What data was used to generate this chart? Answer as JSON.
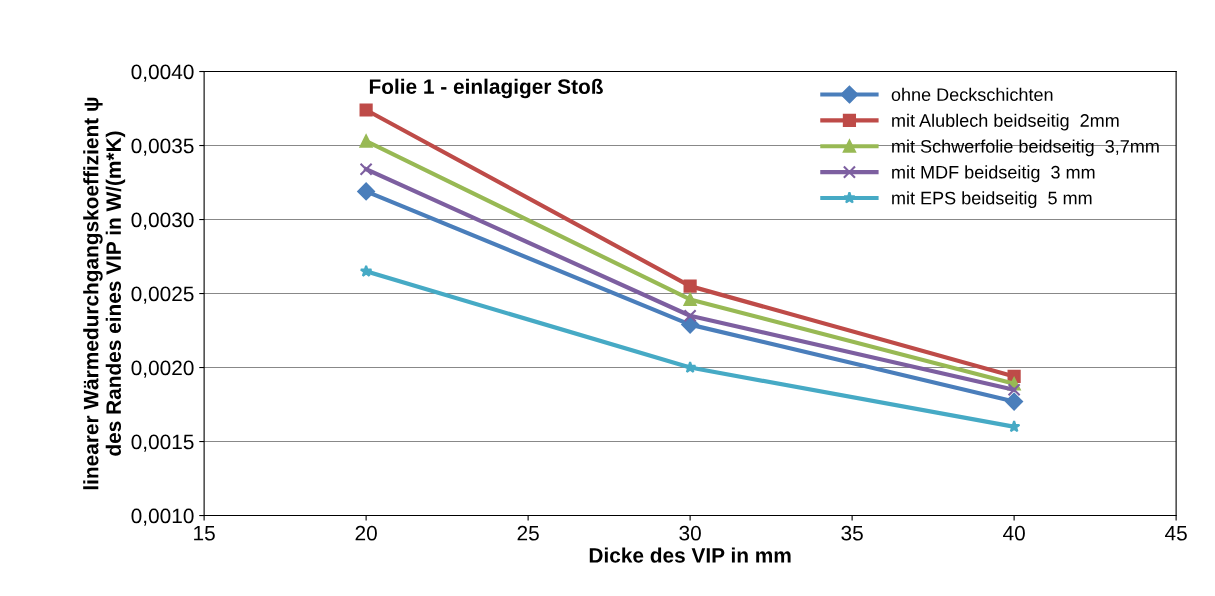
{
  "chart_data": {
    "type": "line",
    "title": "Folie 1 - einlagiger Stoß",
    "xlabel": "Dicke des VIP in mm",
    "ylabel": "linearer Wärmedurchgangskoeffizient ψ\ndes Randes eines VIP in W/(m*K)",
    "x": [
      20,
      30,
      40
    ],
    "series": [
      {
        "name": "ohne Deckschichten",
        "color": "#4a7ebb",
        "marker": "diamond",
        "values": [
          0.00319,
          0.00229,
          0.00177
        ]
      },
      {
        "name": "mit Alublech beidseitig  2mm",
        "color": "#be4b48",
        "marker": "square",
        "values": [
          0.00374,
          0.00255,
          0.00194
        ]
      },
      {
        "name": "mit Schwerfolie beidseitig  3,7mm",
        "color": "#98b954",
        "marker": "triangle",
        "values": [
          0.00353,
          0.00246,
          0.00189
        ]
      },
      {
        "name": "mit MDF beidseitig  3 mm",
        "color": "#7d5fa0",
        "marker": "cross",
        "values": [
          0.00334,
          0.00235,
          0.00185
        ]
      },
      {
        "name": "mit EPS beidseitig  5 mm",
        "color": "#46aac5",
        "marker": "star",
        "values": [
          0.00265,
          0.002,
          0.0016
        ]
      }
    ],
    "xlim": [
      15,
      45
    ],
    "xticks": [
      15,
      20,
      25,
      30,
      35,
      40,
      45
    ],
    "ylim": [
      0.001,
      0.004
    ],
    "yticks": [
      {
        "value": 0.001,
        "label": "0,0010"
      },
      {
        "value": 0.0015,
        "label": "0,0015"
      },
      {
        "value": 0.002,
        "label": "0,0020"
      },
      {
        "value": 0.0025,
        "label": "0,0025"
      },
      {
        "value": 0.003,
        "label": "0,0030"
      },
      {
        "value": 0.0035,
        "label": "0,0035"
      },
      {
        "value": 0.004,
        "label": "0,0040"
      }
    ],
    "grid": "y",
    "legend": "top right",
    "line_style": "solid"
  }
}
